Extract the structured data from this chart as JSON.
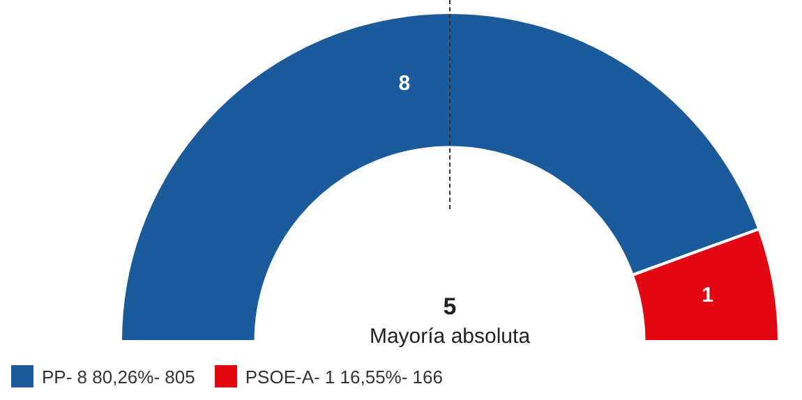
{
  "chart_data": {
    "type": "donut",
    "categories": [
      "PP- 8 80,26%- 805",
      "PSOE-A- 1 16,55%- 166"
    ],
    "values": [
      8,
      1
    ],
    "colors": [
      "#1b5b9c",
      "#e30613"
    ],
    "data_labels": true,
    "legend": "bottom left",
    "annotations": [
      "5",
      "Mayoría absoluta"
    ]
  }
}
